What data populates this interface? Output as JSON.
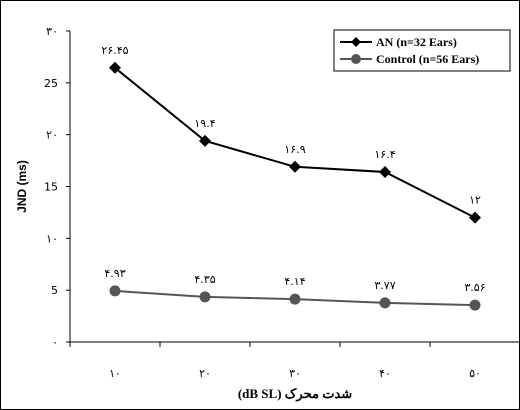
{
  "chart_data": {
    "type": "line",
    "title": "",
    "xlabel": "شدت محرک (dB SL)",
    "ylabel": "JND (ms)",
    "x": [
      10,
      20,
      30,
      40,
      50
    ],
    "x_tick_labels": [
      "۱۰",
      "۲۰",
      "۳۰",
      "۴۰",
      "۵۰"
    ],
    "ylim": [
      0,
      30
    ],
    "y_ticks": [
      0,
      5,
      10,
      15,
      20,
      25,
      30
    ],
    "y_tick_labels": [
      "۰",
      "5",
      "۱۰",
      "15",
      "۲۰",
      "25",
      "۳۰"
    ],
    "grid": false,
    "legend_position": "top-right",
    "series": [
      {
        "name": "AN (n=32 Ears)",
        "marker": "diamond",
        "color": "#000000",
        "values": [
          26.45,
          19.4,
          16.9,
          16.4,
          12
        ],
        "data_labels": [
          "۲۶.۴۵",
          "۱۹.۴",
          "۱۶.۹",
          "۱۶.۴",
          "۱۲"
        ]
      },
      {
        "name": "Control (n=56 Ears)",
        "marker": "circle",
        "color": "#555555",
        "values": [
          4.93,
          4.35,
          4.14,
          3.77,
          3.56
        ],
        "data_labels": [
          "۴.۹۳",
          "۴.۳۵",
          "۴.۱۴",
          "۳.۷۷",
          "۳.۵۶"
        ]
      }
    ]
  }
}
